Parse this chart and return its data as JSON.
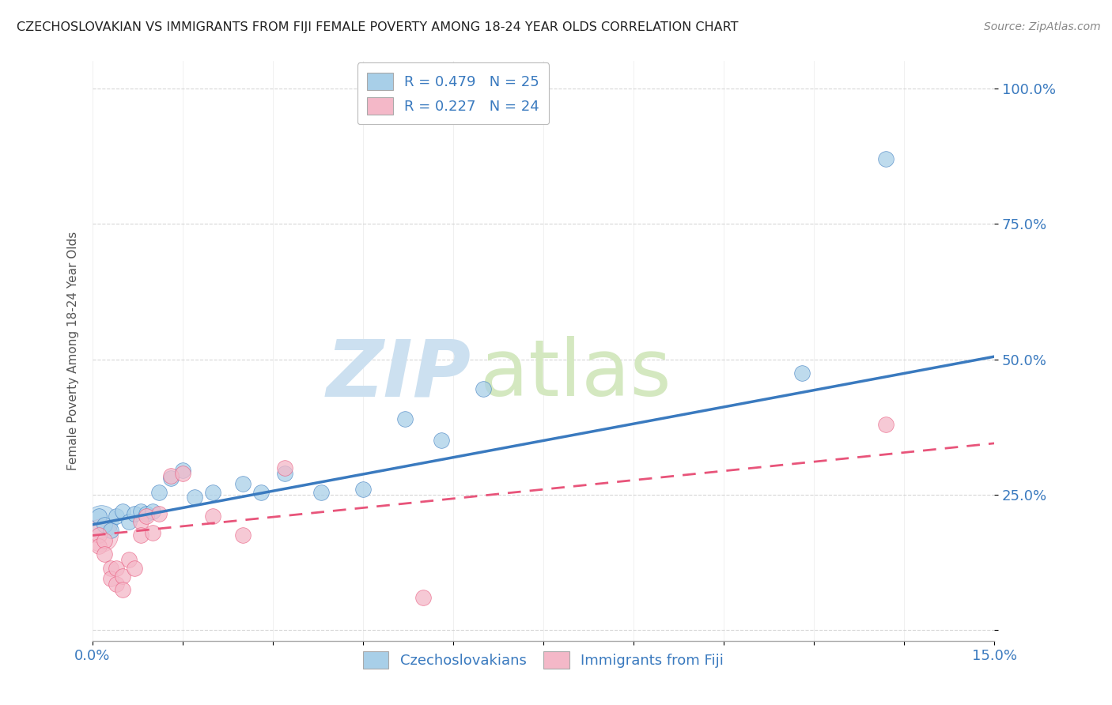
{
  "title": "CZECHOSLOVAKIAN VS IMMIGRANTS FROM FIJI FEMALE POVERTY AMONG 18-24 YEAR OLDS CORRELATION CHART",
  "source": "Source: ZipAtlas.com",
  "ylabel": "Female Poverty Among 18-24 Year Olds",
  "xlim": [
    0.0,
    0.15
  ],
  "ylim": [
    -0.02,
    1.05
  ],
  "xticks": [
    0.0,
    0.015,
    0.03,
    0.045,
    0.06,
    0.075,
    0.09,
    0.105,
    0.12,
    0.135,
    0.15
  ],
  "xticklabels": [
    "0.0%",
    "",
    "",
    "",
    "",
    "",
    "",
    "",
    "",
    "",
    "15.0%"
  ],
  "ytick_positions": [
    0.0,
    0.25,
    0.5,
    0.75,
    1.0
  ],
  "yticklabels": [
    "",
    "25.0%",
    "50.0%",
    "75.0%",
    "100.0%"
  ],
  "blue_color": "#a8cfe8",
  "pink_color": "#f4b8c8",
  "blue_line_color": "#3a7abf",
  "pink_line_color": "#e8547a",
  "legend_text_color": "#3a7abf",
  "R_blue": 0.479,
  "N_blue": 25,
  "R_pink": 0.227,
  "N_pink": 24,
  "watermark_zip": "ZIP",
  "watermark_atlas": "atlas",
  "watermark_color_zip": "#c8dff0",
  "watermark_color_atlas": "#d8e8c8",
  "grid_color": "#cccccc",
  "bg_color": "#ffffff",
  "blue_scatter_x": [
    0.001,
    0.002,
    0.003,
    0.004,
    0.005,
    0.006,
    0.007,
    0.008,
    0.009,
    0.01,
    0.011,
    0.013,
    0.015,
    0.017,
    0.02,
    0.025,
    0.028,
    0.032,
    0.038,
    0.045,
    0.052,
    0.058,
    0.065,
    0.118,
    0.132
  ],
  "blue_scatter_y": [
    0.21,
    0.195,
    0.185,
    0.21,
    0.22,
    0.2,
    0.215,
    0.22,
    0.215,
    0.22,
    0.255,
    0.28,
    0.295,
    0.245,
    0.255,
    0.27,
    0.255,
    0.29,
    0.255,
    0.26,
    0.39,
    0.35,
    0.445,
    0.475,
    0.87
  ],
  "pink_scatter_x": [
    0.001,
    0.001,
    0.002,
    0.002,
    0.003,
    0.003,
    0.004,
    0.004,
    0.005,
    0.005,
    0.006,
    0.007,
    0.008,
    0.008,
    0.009,
    0.01,
    0.011,
    0.013,
    0.015,
    0.02,
    0.025,
    0.032,
    0.055,
    0.132
  ],
  "pink_scatter_y": [
    0.175,
    0.155,
    0.165,
    0.14,
    0.115,
    0.095,
    0.115,
    0.085,
    0.1,
    0.075,
    0.13,
    0.115,
    0.2,
    0.175,
    0.21,
    0.18,
    0.215,
    0.285,
    0.29,
    0.21,
    0.175,
    0.3,
    0.06,
    0.38
  ],
  "blue_trend_x": [
    0.0,
    0.15
  ],
  "blue_trend_y": [
    0.195,
    0.505
  ],
  "pink_trend_x": [
    0.0,
    0.15
  ],
  "pink_trend_y": [
    0.175,
    0.345
  ]
}
